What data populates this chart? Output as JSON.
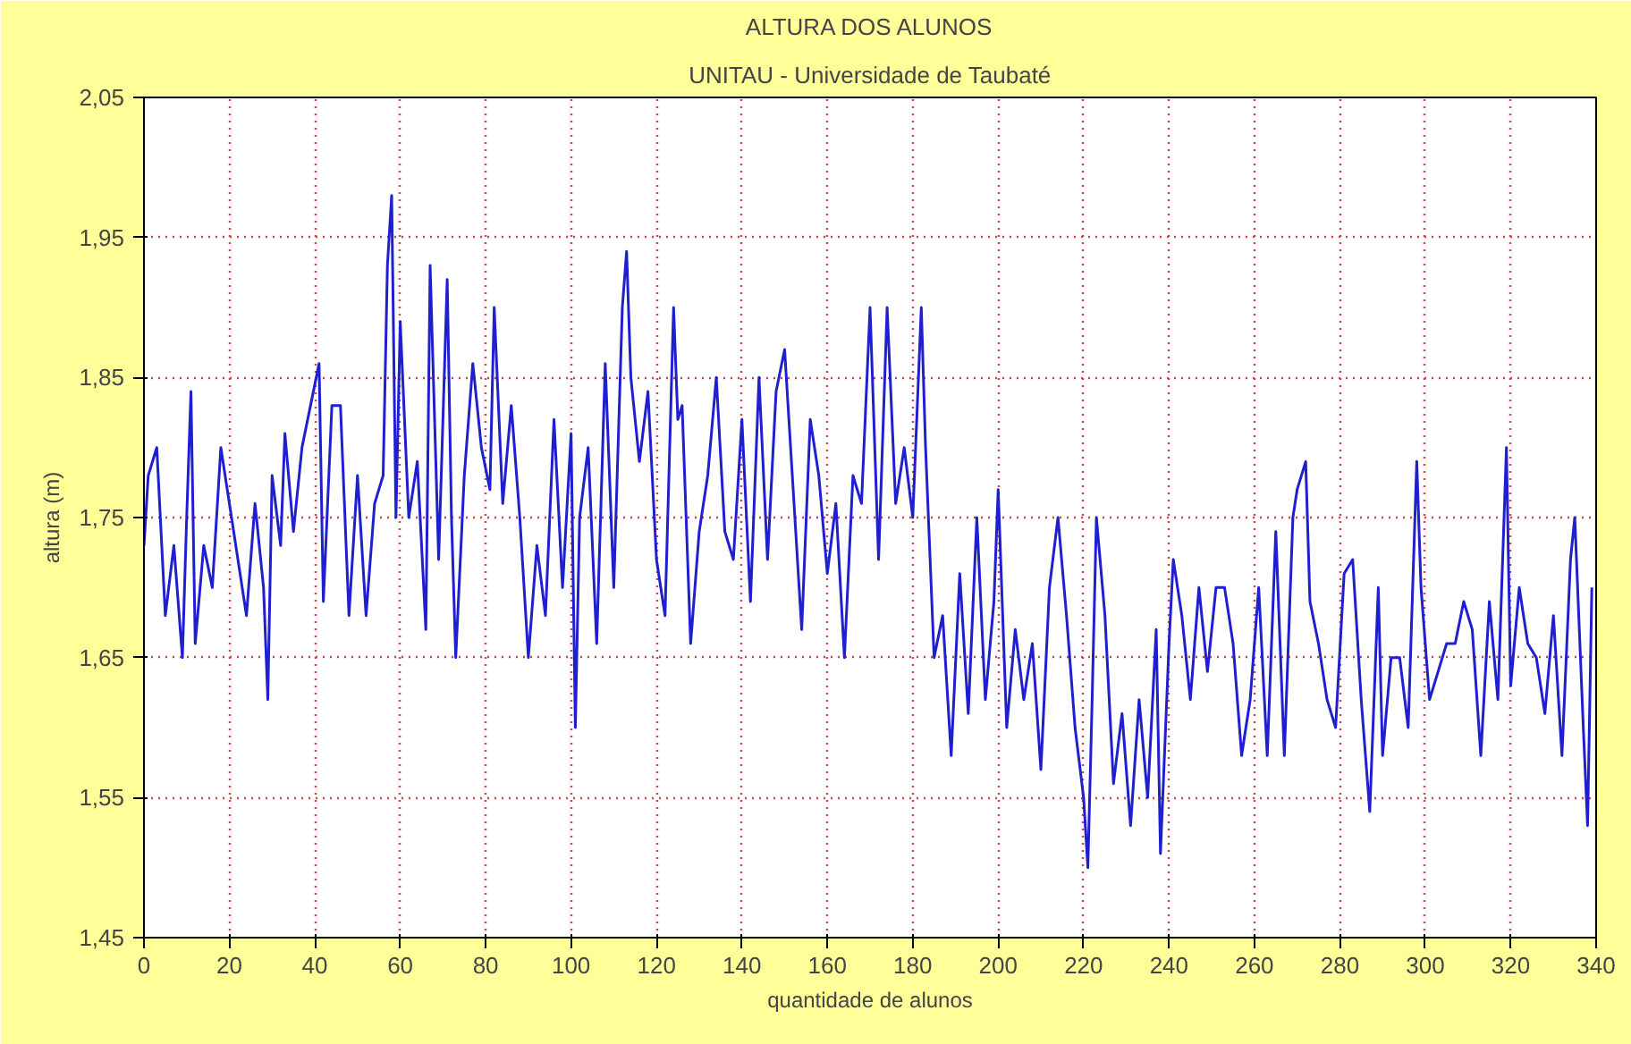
{
  "chart_data": {
    "type": "line",
    "title": "ALTURA DOS ALUNOS",
    "subtitle": "UNITAU - Universidade de Taubaté",
    "xlabel": "quantidade de alunos",
    "ylabel": "altura (m)",
    "x": [
      0,
      1,
      3,
      5,
      7,
      9,
      10,
      11,
      12,
      14,
      16,
      18,
      20,
      22,
      24,
      26,
      28,
      29,
      30,
      32,
      33,
      35,
      37,
      39,
      41,
      42,
      44,
      46,
      48,
      50,
      52,
      54,
      56,
      57,
      58,
      59,
      60,
      62,
      64,
      66,
      67,
      69,
      71,
      72,
      73,
      75,
      77,
      79,
      81,
      82,
      84,
      86,
      88,
      90,
      92,
      94,
      96,
      98,
      100,
      101,
      102,
      104,
      106,
      108,
      110,
      112,
      113,
      114,
      116,
      118,
      120,
      122,
      124,
      125,
      126,
      128,
      130,
      132,
      134,
      136,
      138,
      140,
      142,
      144,
      146,
      148,
      150,
      152,
      154,
      156,
      158,
      160,
      162,
      164,
      166,
      168,
      170,
      172,
      174,
      176,
      178,
      180,
      182,
      183,
      185,
      187,
      189,
      191,
      193,
      195,
      197,
      199,
      200,
      202,
      204,
      206,
      208,
      210,
      212,
      214,
      216,
      218,
      220,
      221,
      222,
      223,
      225,
      227,
      229,
      231,
      233,
      235,
      237,
      238,
      240,
      241,
      243,
      245,
      247,
      249,
      251,
      253,
      255,
      257,
      259,
      261,
      263,
      265,
      267,
      269,
      270,
      272,
      273,
      275,
      277,
      279,
      281,
      283,
      285,
      287,
      289,
      290,
      292,
      294,
      296,
      298,
      299,
      301,
      303,
      305,
      307,
      309,
      311,
      313,
      315,
      317,
      319,
      320,
      322,
      324,
      326,
      328,
      330,
      332,
      334,
      335,
      337,
      338,
      339
    ],
    "series": [
      {
        "color": "#1f1fd0",
        "values": [
          1.73,
          1.78,
          1.8,
          1.68,
          1.73,
          1.65,
          1.75,
          1.84,
          1.66,
          1.73,
          1.7,
          1.8,
          1.76,
          1.72,
          1.68,
          1.76,
          1.7,
          1.62,
          1.78,
          1.73,
          1.81,
          1.74,
          1.8,
          1.83,
          1.86,
          1.69,
          1.83,
          1.83,
          1.68,
          1.78,
          1.68,
          1.76,
          1.78,
          1.93,
          1.98,
          1.75,
          1.89,
          1.75,
          1.79,
          1.67,
          1.93,
          1.72,
          1.92,
          1.75,
          1.65,
          1.78,
          1.86,
          1.8,
          1.77,
          1.9,
          1.76,
          1.83,
          1.75,
          1.65,
          1.73,
          1.68,
          1.82,
          1.7,
          1.81,
          1.6,
          1.75,
          1.8,
          1.66,
          1.86,
          1.7,
          1.9,
          1.94,
          1.85,
          1.79,
          1.84,
          1.72,
          1.68,
          1.9,
          1.82,
          1.83,
          1.66,
          1.74,
          1.78,
          1.85,
          1.74,
          1.72,
          1.82,
          1.69,
          1.85,
          1.72,
          1.84,
          1.87,
          1.77,
          1.67,
          1.82,
          1.78,
          1.71,
          1.76,
          1.65,
          1.78,
          1.76,
          1.9,
          1.72,
          1.9,
          1.76,
          1.8,
          1.75,
          1.9,
          1.8,
          1.65,
          1.68,
          1.58,
          1.71,
          1.61,
          1.75,
          1.62,
          1.69,
          1.77,
          1.6,
          1.67,
          1.62,
          1.66,
          1.57,
          1.7,
          1.75,
          1.68,
          1.6,
          1.55,
          1.5,
          1.62,
          1.75,
          1.68,
          1.56,
          1.61,
          1.53,
          1.62,
          1.55,
          1.67,
          1.51,
          1.66,
          1.72,
          1.68,
          1.62,
          1.7,
          1.64,
          1.7,
          1.7,
          1.66,
          1.58,
          1.62,
          1.7,
          1.58,
          1.74,
          1.58,
          1.75,
          1.77,
          1.79,
          1.69,
          1.66,
          1.62,
          1.6,
          1.71,
          1.72,
          1.62,
          1.54,
          1.7,
          1.58,
          1.65,
          1.65,
          1.6,
          1.79,
          1.7,
          1.62,
          1.64,
          1.66,
          1.66,
          1.69,
          1.67,
          1.58,
          1.69,
          1.62,
          1.8,
          1.63,
          1.7,
          1.66,
          1.65,
          1.61,
          1.68,
          1.58,
          1.72,
          1.75,
          1.6,
          1.53,
          1.7
        ]
      }
    ],
    "xlim": [
      0,
      340
    ],
    "xticks": [
      0,
      20,
      40,
      60,
      80,
      100,
      120,
      140,
      160,
      180,
      200,
      220,
      240,
      260,
      280,
      300,
      320,
      340
    ],
    "ylim": [
      1.45,
      2.05
    ],
    "yticks": [
      {
        "value": 1.45,
        "label": "1,45"
      },
      {
        "value": 1.55,
        "label": "1,55"
      },
      {
        "value": 1.65,
        "label": "1,65"
      },
      {
        "value": 1.75,
        "label": "1,75"
      },
      {
        "value": 1.85,
        "label": "1,85"
      },
      {
        "value": 1.95,
        "label": "1,95"
      },
      {
        "value": 2.05,
        "label": "2,05"
      }
    ],
    "grid": true,
    "line_style": "solid"
  }
}
